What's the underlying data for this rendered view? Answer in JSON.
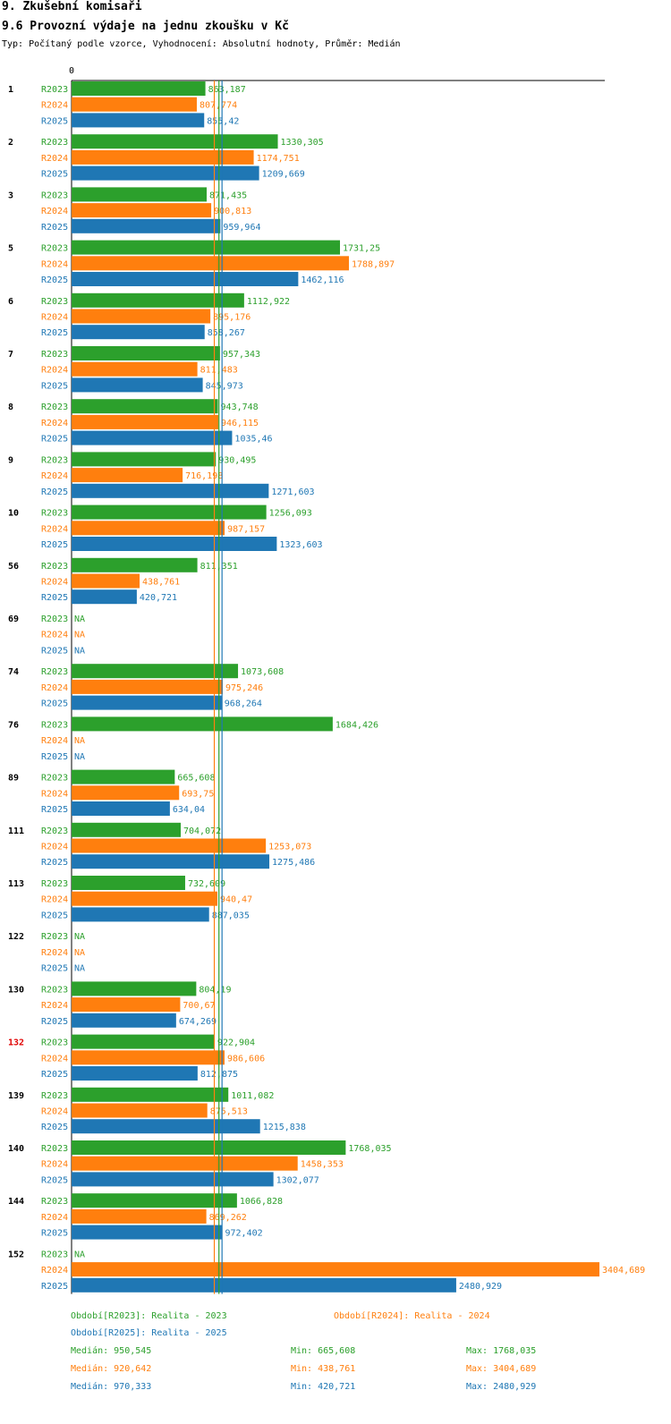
{
  "section_title": "9. Zkušební komisaři",
  "chart_title": "9.6 Provozní výdaje na jednu zkoušku v Kč",
  "subtitle": "Typ: Počítaný podle vzorce, Vyhodnocení: Absolutní hodnoty, Průměr: Medián",
  "colors": {
    "R2023": "#2ca02c",
    "R2024": "#ff7f0e",
    "R2025": "#1f77b4",
    "highlight": "#e00000",
    "text": "#000000"
  },
  "chart_data": {
    "type": "bar",
    "orientation": "horizontal",
    "axis_zero_label": "0",
    "xlim": [
      0,
      3404.689
    ],
    "series_names": [
      "R2023",
      "R2024",
      "R2025"
    ],
    "highlight_category": "132",
    "categories": [
      "1",
      "2",
      "3",
      "5",
      "6",
      "7",
      "8",
      "9",
      "10",
      "56",
      "69",
      "74",
      "76",
      "89",
      "111",
      "113",
      "122",
      "130",
      "132",
      "139",
      "140",
      "144",
      "152"
    ],
    "series": [
      {
        "name": "R2023",
        "values": [
          863.187,
          1330.305,
          871.435,
          1731.25,
          1112.922,
          957.343,
          943.748,
          930.495,
          1256.093,
          811.351,
          null,
          1073.608,
          1684.426,
          665.608,
          704.072,
          732.609,
          null,
          804.19,
          922.904,
          1011.082,
          1768.035,
          1066.828,
          null
        ],
        "labels": [
          "863,187",
          "1330,305",
          "871,435",
          "1731,25",
          "1112,922",
          "957,343",
          "943,748",
          "930,495",
          "1256,093",
          "811,351",
          "NA",
          "1073,608",
          "1684,426",
          "665,608",
          "704,072",
          "732,609",
          "NA",
          "804,19",
          "922,904",
          "1011,082",
          "1768,035",
          "1066,828",
          "NA"
        ]
      },
      {
        "name": "R2024",
        "values": [
          807.774,
          1174.751,
          900.813,
          1788.897,
          895.176,
          811.483,
          946.115,
          716.198,
          987.157,
          438.761,
          null,
          975.246,
          null,
          693.75,
          1253.073,
          940.47,
          null,
          700.67,
          986.606,
          875.513,
          1458.353,
          869.262,
          3404.689
        ],
        "labels": [
          "807,774",
          "1174,751",
          "900,813",
          "1788,897",
          "895,176",
          "811,483",
          "946,115",
          "716,198",
          "987,157",
          "438,761",
          "NA",
          "975,246",
          "NA",
          "693,75",
          "1253,073",
          "940,47",
          "NA",
          "700,67",
          "986,606",
          "875,513",
          "1458,353",
          "869,262",
          "3404,689"
        ]
      },
      {
        "name": "R2025",
        "values": [
          855.42,
          1209.669,
          959.964,
          1462.116,
          858.267,
          845.973,
          1035.46,
          1271.603,
          1323.603,
          420.721,
          null,
          968.264,
          null,
          634.04,
          1275.486,
          887.035,
          null,
          674.269,
          812.875,
          1215.838,
          1302.077,
          972.402,
          2480.929
        ],
        "labels": [
          "855,42",
          "1209,669",
          "959,964",
          "1462,116",
          "858,267",
          "845,973",
          "1035,46",
          "1271,603",
          "1323,603",
          "420,721",
          "NA",
          "968,264",
          "NA",
          "634,04",
          "1275,486",
          "887,035",
          "NA",
          "674,269",
          "812,875",
          "1215,838",
          "1302,077",
          "972,402",
          "2480,929"
        ]
      }
    ],
    "medians": {
      "R2023": 950.545,
      "R2024": 920.642,
      "R2025": 970.333
    }
  },
  "legend": {
    "r2023": "Období[R2023]: Realita - 2023",
    "r2024": "Období[R2024]: Realita - 2024",
    "r2025": "Období[R2025]: Realita - 2025"
  },
  "stats": [
    {
      "median": "Medián: 950,545",
      "min": "Min: 665,608",
      "max": "Max: 1768,035"
    },
    {
      "median": "Medián: 920,642",
      "min": "Min: 438,761",
      "max": "Max: 3404,689"
    },
    {
      "median": "Medián: 970,333",
      "min": "Min: 420,721",
      "max": "Max: 2480,929"
    }
  ]
}
